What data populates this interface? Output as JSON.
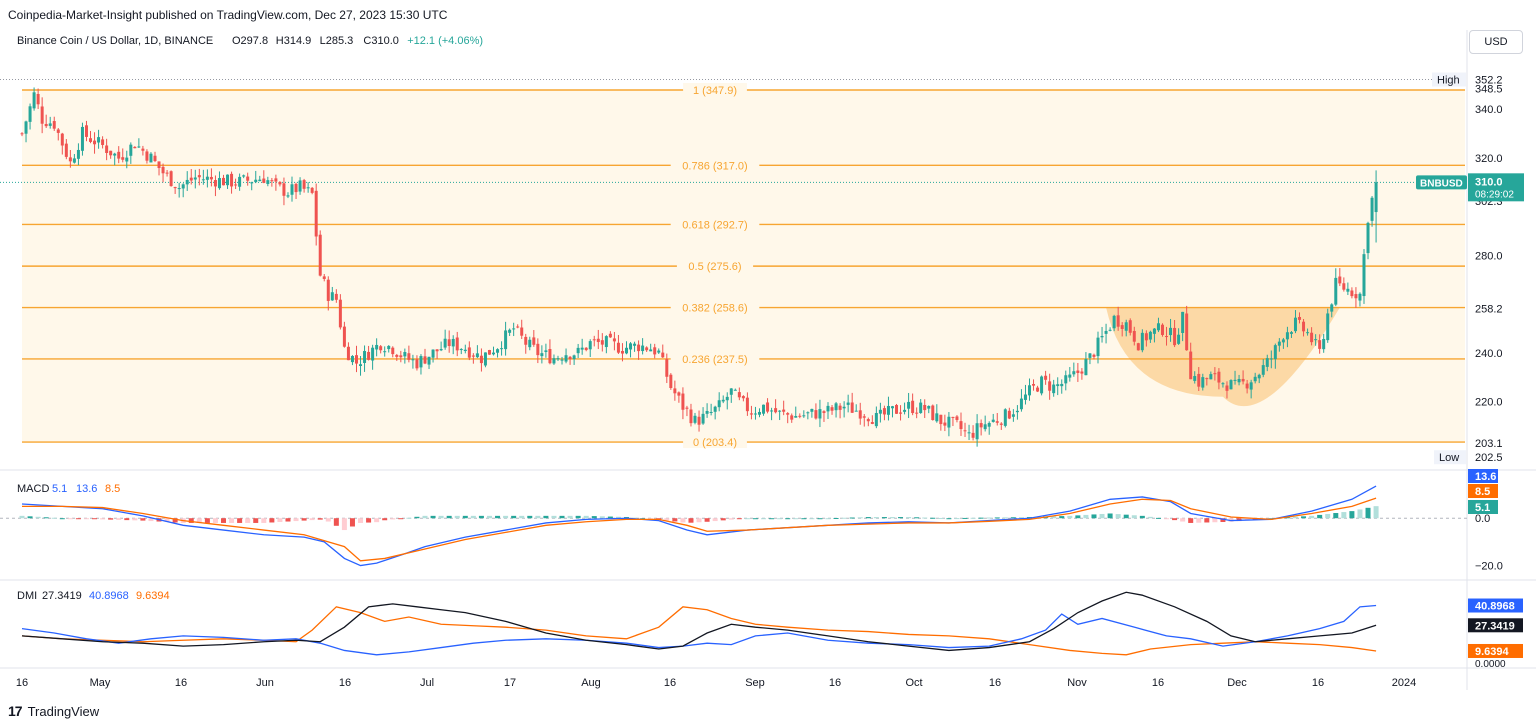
{
  "header": {
    "publish_line": "Coinpedia-Market-Insight published on TradingView.com, Dec 27, 2023 15:30 UTC",
    "currency_button": "USD",
    "footer_brand": "TradingView"
  },
  "chart_data": [
    {
      "type": "candlestick",
      "title": "Binance Coin / US Dollar, 1D, BINANCE",
      "ohlc_label": {
        "O": "O297.8",
        "H": "H314.9",
        "L": "L285.3",
        "C": "C310.0",
        "change": "+12.1 (+4.06%)"
      },
      "symbol_tag": "BNBUSD",
      "last_price": "310.0",
      "countdown": "08:29:02",
      "high_label": "High",
      "high_value": "352.2",
      "low_label": "Low",
      "low_value": "202.5",
      "y_ticks": [
        "348.5",
        "340.0",
        "320.0",
        "302.3",
        "280.0",
        "258.2",
        "240.0",
        "220.0",
        "203.1"
      ],
      "ylim": [
        198,
        355
      ],
      "x_ticks": [
        "16",
        "May",
        "16",
        "Jun",
        "16",
        "Jul",
        "17",
        "Aug",
        "16",
        "Sep",
        "16",
        "Oct",
        "16",
        "Nov",
        "16",
        "Dec",
        "16",
        "2024"
      ],
      "fibonacci": [
        {
          "label": "1 (347.9)",
          "value": 347.9
        },
        {
          "label": "0.786 (317.0)",
          "value": 317.0
        },
        {
          "label": "0.618 (292.7)",
          "value": 292.7
        },
        {
          "label": "0.5 (275.6)",
          "value": 275.6
        },
        {
          "label": "0.382 (258.6)",
          "value": 258.6
        },
        {
          "label": "0.236 (237.5)",
          "value": 237.5
        },
        {
          "label": "0 (203.4)",
          "value": 203.4
        }
      ],
      "colors": {
        "up": "#26a69a",
        "down": "#ef5350",
        "fib": "#f7a531",
        "fib_fill": "#fff8ea",
        "cup": "#fbd39a"
      },
      "path_closes": [
        [
          0,
          330
        ],
        [
          3,
          346
        ],
        [
          5,
          336
        ],
        [
          8,
          334
        ],
        [
          12,
          318
        ],
        [
          15,
          330
        ],
        [
          20,
          325
        ],
        [
          24,
          320
        ],
        [
          28,
          326
        ],
        [
          32,
          320
        ],
        [
          35,
          314
        ],
        [
          39,
          308
        ],
        [
          43,
          312
        ],
        [
          48,
          311
        ],
        [
          53,
          310
        ],
        [
          57,
          311
        ],
        [
          60,
          312
        ],
        [
          63,
          308
        ],
        [
          66,
          306
        ],
        [
          69,
          308
        ],
        [
          72,
          305
        ],
        [
          74,
          272
        ],
        [
          76,
          264
        ],
        [
          78,
          262
        ],
        [
          80,
          242
        ],
        [
          83,
          236
        ],
        [
          86,
          240
        ],
        [
          89,
          244
        ],
        [
          92,
          242
        ],
        [
          95,
          238
        ],
        [
          98,
          236
        ],
        [
          102,
          240
        ],
        [
          106,
          244
        ],
        [
          110,
          242
        ],
        [
          114,
          238
        ],
        [
          118,
          243
        ],
        [
          122,
          250
        ],
        [
          125,
          244
        ],
        [
          128,
          240
        ],
        [
          132,
          238
        ],
        [
          135,
          240
        ],
        [
          138,
          240
        ],
        [
          141,
          244
        ],
        [
          145,
          244
        ],
        [
          149,
          242
        ],
        [
          153,
          243
        ],
        [
          156,
          242
        ],
        [
          158,
          240
        ],
        [
          161,
          226
        ],
        [
          164,
          218
        ],
        [
          167,
          212
        ],
        [
          170,
          214
        ],
        [
          173,
          218
        ],
        [
          176,
          224
        ],
        [
          178,
          220
        ],
        [
          181,
          216
        ],
        [
          184,
          218
        ],
        [
          188,
          215
        ],
        [
          192,
          214
        ],
        [
          196,
          215
        ],
        [
          200,
          216
        ],
        [
          204,
          218
        ],
        [
          208,
          216
        ],
        [
          212,
          213
        ],
        [
          216,
          216
        ],
        [
          220,
          218
        ],
        [
          224,
          217
        ],
        [
          228,
          212
        ],
        [
          232,
          210
        ],
        [
          235,
          206
        ],
        [
          238,
          210
        ],
        [
          241,
          212
        ],
        [
          244,
          214
        ],
        [
          247,
          218
        ],
        [
          250,
          224
        ],
        [
          253,
          228
        ],
        [
          256,
          226
        ],
        [
          259,
          228
        ],
        [
          262,
          232
        ],
        [
          265,
          238
        ],
        [
          268,
          246
        ],
        [
          271,
          254
        ],
        [
          274,
          252
        ],
        [
          277,
          244
        ],
        [
          280,
          248
        ],
        [
          283,
          250
        ],
        [
          286,
          246
        ],
        [
          288,
          254
        ],
        [
          290,
          232
        ],
        [
          292,
          228
        ],
        [
          295,
          230
        ],
        [
          298,
          228
        ],
        [
          301,
          226
        ],
        [
          304,
          228
        ],
        [
          307,
          232
        ],
        [
          310,
          238
        ],
        [
          313,
          248
        ],
        [
          316,
          252
        ],
        [
          319,
          248
        ],
        [
          322,
          240
        ],
        [
          324,
          256
        ],
        [
          326,
          268
        ],
        [
          329,
          266
        ],
        [
          332,
          264
        ],
        [
          334,
          296
        ],
        [
          336,
          310
        ]
      ],
      "macd": {
        "label": "MACD",
        "values": [
          "5.1",
          "13.6",
          "8.5"
        ],
        "badges": [
          "13.6",
          "8.5",
          "5.1"
        ],
        "ticks": [
          "0.0",
          "−20.0"
        ],
        "ylim": [
          -24,
          17
        ],
        "macd_line": [
          [
            0,
            6
          ],
          [
            10,
            5
          ],
          [
            20,
            4
          ],
          [
            30,
            1
          ],
          [
            40,
            -3
          ],
          [
            50,
            -5
          ],
          [
            60,
            -7
          ],
          [
            70,
            -8
          ],
          [
            75,
            -10
          ],
          [
            80,
            -17
          ],
          [
            84,
            -20
          ],
          [
            88,
            -19
          ],
          [
            95,
            -15
          ],
          [
            100,
            -12
          ],
          [
            110,
            -8
          ],
          [
            120,
            -5
          ],
          [
            130,
            -2
          ],
          [
            140,
            -0.5
          ],
          [
            150,
            0
          ],
          [
            158,
            -1
          ],
          [
            165,
            -5
          ],
          [
            170,
            -7
          ],
          [
            180,
            -5
          ],
          [
            190,
            -4
          ],
          [
            200,
            -3
          ],
          [
            210,
            -2
          ],
          [
            220,
            -1.5
          ],
          [
            230,
            -2
          ],
          [
            240,
            -1
          ],
          [
            250,
            0
          ],
          [
            260,
            3
          ],
          [
            270,
            8
          ],
          [
            278,
            9
          ],
          [
            285,
            7
          ],
          [
            290,
            2
          ],
          [
            300,
            -1
          ],
          [
            310,
            -0.5
          ],
          [
            320,
            3
          ],
          [
            330,
            8
          ],
          [
            336,
            13.6
          ]
        ],
        "signal_line": [
          [
            0,
            5
          ],
          [
            10,
            5
          ],
          [
            20,
            4.5
          ],
          [
            30,
            2
          ],
          [
            40,
            -1
          ],
          [
            50,
            -3
          ],
          [
            60,
            -5
          ],
          [
            70,
            -7
          ],
          [
            80,
            -12
          ],
          [
            84,
            -18
          ],
          [
            90,
            -17
          ],
          [
            100,
            -13
          ],
          [
            110,
            -9
          ],
          [
            120,
            -6
          ],
          [
            130,
            -3
          ],
          [
            140,
            -1.5
          ],
          [
            150,
            -0.5
          ],
          [
            158,
            -0.5
          ],
          [
            165,
            -3
          ],
          [
            170,
            -5.5
          ],
          [
            180,
            -5
          ],
          [
            190,
            -4
          ],
          [
            200,
            -3
          ],
          [
            210,
            -2.5
          ],
          [
            220,
            -2
          ],
          [
            230,
            -2
          ],
          [
            240,
            -1.3
          ],
          [
            250,
            -0.5
          ],
          [
            260,
            2
          ],
          [
            270,
            6
          ],
          [
            278,
            8
          ],
          [
            285,
            7.5
          ],
          [
            290,
            4
          ],
          [
            300,
            0.5
          ],
          [
            310,
            -0.5
          ],
          [
            320,
            2
          ],
          [
            330,
            5
          ],
          [
            336,
            8.5
          ]
        ]
      },
      "dmi": {
        "label": "DMI",
        "values": [
          "27.3419",
          "40.8968",
          "9.6394"
        ],
        "badges": [
          "40.8968",
          "27.3419",
          "9.6394"
        ],
        "ticks": [
          "0.0000"
        ],
        "ylim": [
          0,
          55
        ],
        "adx": [
          [
            0,
            20
          ],
          [
            10,
            18
          ],
          [
            20,
            16
          ],
          [
            30,
            15
          ],
          [
            40,
            13
          ],
          [
            50,
            14
          ],
          [
            60,
            16
          ],
          [
            68,
            17
          ],
          [
            74,
            16
          ],
          [
            80,
            26
          ],
          [
            86,
            40
          ],
          [
            92,
            42
          ],
          [
            98,
            40
          ],
          [
            104,
            38
          ],
          [
            110,
            36
          ],
          [
            120,
            30
          ],
          [
            130,
            22
          ],
          [
            140,
            17
          ],
          [
            150,
            14
          ],
          [
            158,
            11
          ],
          [
            164,
            13
          ],
          [
            170,
            22
          ],
          [
            176,
            28
          ],
          [
            182,
            26
          ],
          [
            190,
            24
          ],
          [
            200,
            20
          ],
          [
            210,
            16
          ],
          [
            220,
            13
          ],
          [
            230,
            10
          ],
          [
            240,
            12
          ],
          [
            250,
            16
          ],
          [
            256,
            25
          ],
          [
            262,
            36
          ],
          [
            268,
            44
          ],
          [
            274,
            50
          ],
          [
            278,
            48
          ],
          [
            286,
            40
          ],
          [
            294,
            30
          ],
          [
            300,
            20
          ],
          [
            306,
            16
          ],
          [
            314,
            18
          ],
          [
            322,
            20
          ],
          [
            330,
            22
          ],
          [
            336,
            27.3
          ]
        ],
        "di_plus": [
          [
            0,
            25
          ],
          [
            8,
            22
          ],
          [
            16,
            18
          ],
          [
            24,
            15
          ],
          [
            32,
            18
          ],
          [
            40,
            20
          ],
          [
            50,
            19
          ],
          [
            60,
            17
          ],
          [
            68,
            18
          ],
          [
            74,
            15
          ],
          [
            80,
            10
          ],
          [
            88,
            7
          ],
          [
            96,
            9
          ],
          [
            104,
            12
          ],
          [
            112,
            15
          ],
          [
            120,
            17
          ],
          [
            130,
            18
          ],
          [
            140,
            17
          ],
          [
            150,
            15
          ],
          [
            158,
            12
          ],
          [
            164,
            13
          ],
          [
            170,
            15
          ],
          [
            176,
            14
          ],
          [
            182,
            20
          ],
          [
            190,
            22
          ],
          [
            200,
            17
          ],
          [
            210,
            15
          ],
          [
            220,
            14
          ],
          [
            230,
            12
          ],
          [
            240,
            13
          ],
          [
            248,
            18
          ],
          [
            254,
            24
          ],
          [
            258,
            35
          ],
          [
            262,
            28
          ],
          [
            268,
            32
          ],
          [
            276,
            26
          ],
          [
            284,
            20
          ],
          [
            290,
            18
          ],
          [
            298,
            13
          ],
          [
            306,
            16
          ],
          [
            314,
            20
          ],
          [
            322,
            25
          ],
          [
            328,
            30
          ],
          [
            332,
            40
          ],
          [
            336,
            40.9
          ]
        ],
        "di_minus": [
          [
            0,
            20
          ],
          [
            10,
            18
          ],
          [
            20,
            17
          ],
          [
            30,
            16
          ],
          [
            40,
            17
          ],
          [
            50,
            18
          ],
          [
            60,
            17
          ],
          [
            68,
            16
          ],
          [
            72,
            24
          ],
          [
            78,
            40
          ],
          [
            84,
            36
          ],
          [
            90,
            30
          ],
          [
            96,
            33
          ],
          [
            104,
            28
          ],
          [
            112,
            27
          ],
          [
            120,
            26
          ],
          [
            130,
            24
          ],
          [
            140,
            20
          ],
          [
            150,
            18
          ],
          [
            158,
            26
          ],
          [
            164,
            40
          ],
          [
            170,
            38
          ],
          [
            176,
            32
          ],
          [
            182,
            28
          ],
          [
            190,
            26
          ],
          [
            200,
            24
          ],
          [
            210,
            23
          ],
          [
            220,
            21
          ],
          [
            230,
            20
          ],
          [
            240,
            18
          ],
          [
            250,
            14
          ],
          [
            260,
            10
          ],
          [
            268,
            8
          ],
          [
            274,
            7
          ],
          [
            280,
            11
          ],
          [
            290,
            14
          ],
          [
            298,
            15
          ],
          [
            306,
            16
          ],
          [
            314,
            15
          ],
          [
            322,
            14
          ],
          [
            330,
            12
          ],
          [
            336,
            9.6
          ]
        ]
      }
    }
  ]
}
